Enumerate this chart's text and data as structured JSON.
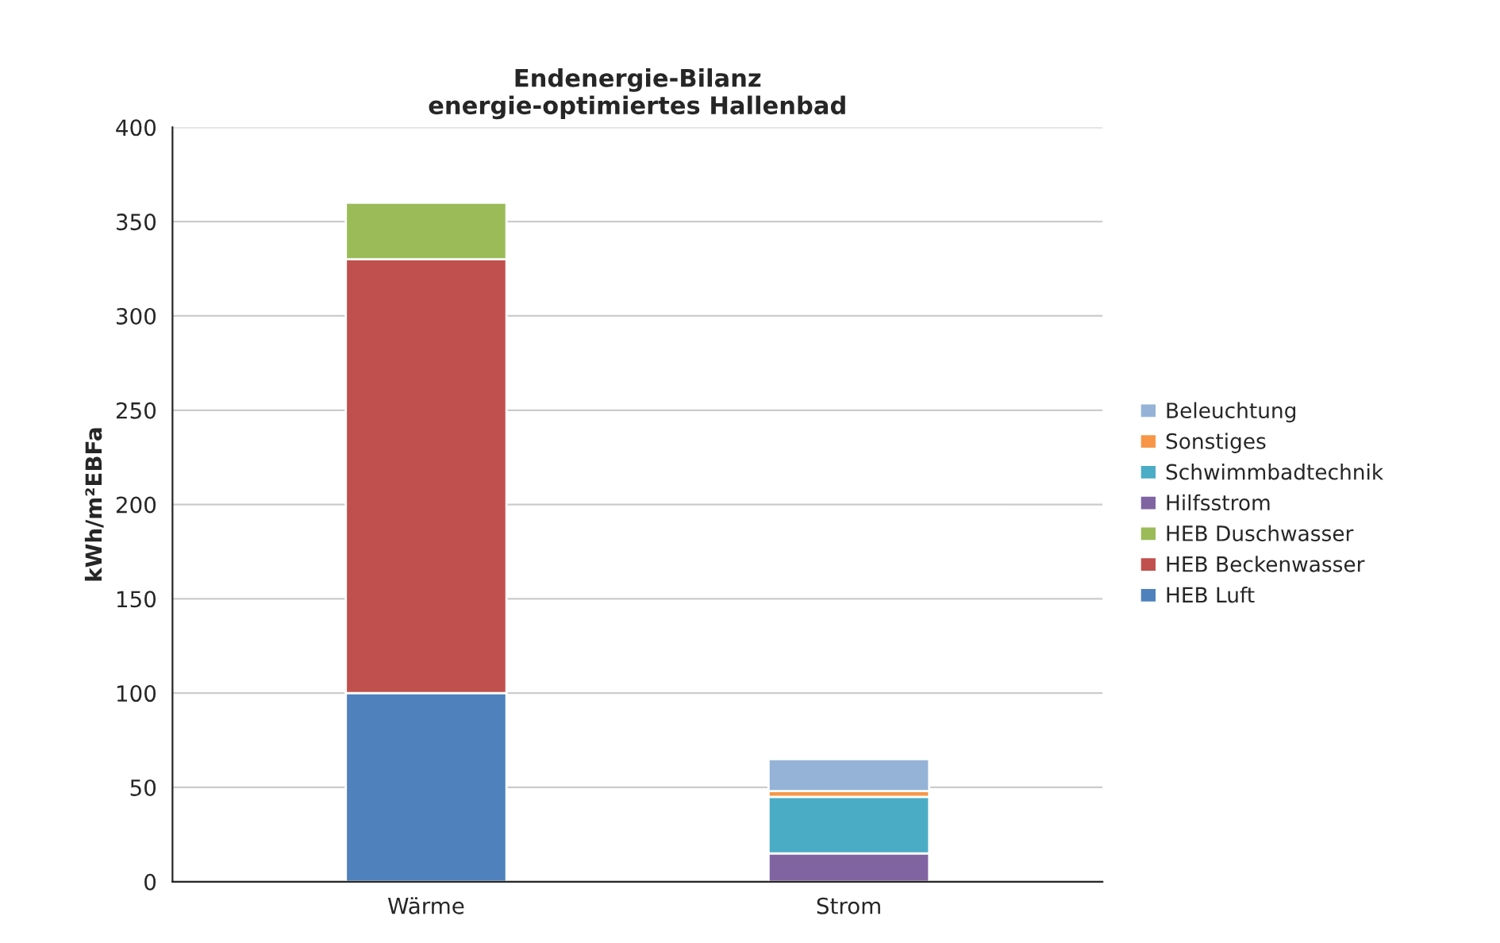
{
  "chart_data": {
    "type": "bar",
    "stacked": true,
    "title": "Endenergie-Bilanz\nenergie-optimiertes Hallenbad",
    "ylabel": "kWh/m²EBFa",
    "categories": [
      "Wärme",
      "Strom"
    ],
    "series": [
      {
        "name": "HEB Luft",
        "color": "#4f81bd",
        "values": [
          100,
          null
        ]
      },
      {
        "name": "HEB Beckenwasser",
        "color": "#c0504d",
        "values": [
          230,
          null
        ]
      },
      {
        "name": "HEB Duschwasser",
        "color": "#9bbb59",
        "values": [
          30,
          null
        ]
      },
      {
        "name": "Hilfsstrom",
        "color": "#8064a2",
        "values": [
          null,
          15
        ]
      },
      {
        "name": "Schwimmbadtechnik",
        "color": "#4bacc6",
        "values": [
          null,
          30
        ]
      },
      {
        "name": "Sonstiges",
        "color": "#f79646",
        "values": [
          null,
          3
        ]
      },
      {
        "name": "Beleuchtung",
        "color": "#95b3d7",
        "values": [
          null,
          17
        ]
      }
    ],
    "ylim": [
      0,
      400
    ],
    "yticks": [
      0,
      50,
      100,
      150,
      200,
      250,
      300,
      350,
      400
    ],
    "grid": "y",
    "legend": "right"
  }
}
